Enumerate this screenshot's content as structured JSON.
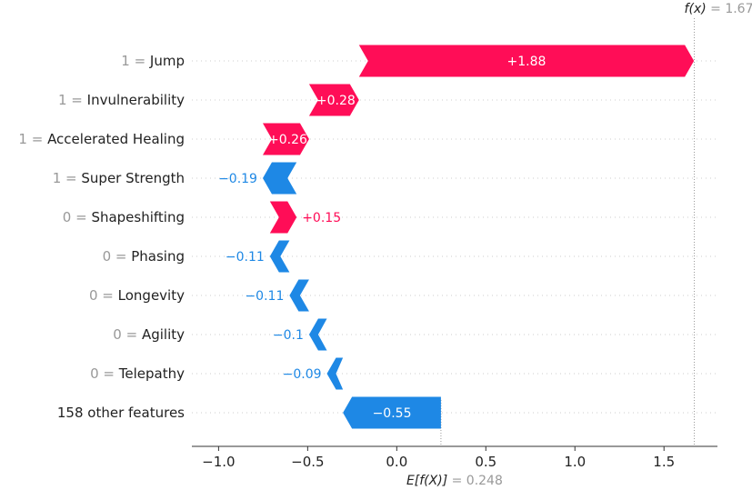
{
  "chart_data": {
    "type": "waterfall",
    "base_value": 0.248,
    "output_value": 1.67,
    "base_label": {
      "text": "E[f(X)]",
      "value_text": "= 0.248"
    },
    "output_label": {
      "text": "f(x)",
      "value_text": "= 1.67"
    },
    "xlim": [
      -1.15,
      1.8
    ],
    "xticks": [
      -1.0,
      -0.5,
      0.0,
      0.5,
      1.0,
      1.5
    ],
    "xtick_labels": [
      "−1.0",
      "−0.5",
      "0.0",
      "0.5",
      "1.0",
      "1.5"
    ],
    "features": [
      {
        "value": "1",
        "name": "Jump",
        "contribution": 1.88,
        "label": "+1.88"
      },
      {
        "value": "1",
        "name": "Invulnerability",
        "contribution": 0.28,
        "label": "+0.28"
      },
      {
        "value": "1",
        "name": "Accelerated Healing",
        "contribution": 0.26,
        "label": "+0.26"
      },
      {
        "value": "1",
        "name": "Super Strength",
        "contribution": -0.19,
        "label": "−0.19"
      },
      {
        "value": "0",
        "name": "Shapeshifting",
        "contribution": 0.15,
        "label": "+0.15"
      },
      {
        "value": "0",
        "name": "Phasing",
        "contribution": -0.11,
        "label": "−0.11"
      },
      {
        "value": "0",
        "name": "Longevity",
        "contribution": -0.11,
        "label": "−0.11"
      },
      {
        "value": "0",
        "name": "Agility",
        "contribution": -0.1,
        "label": "−0.1"
      },
      {
        "value": "0",
        "name": "Telepathy",
        "contribution": -0.09,
        "label": "−0.09"
      },
      {
        "value": "",
        "name": "158 other features",
        "contribution": -0.55,
        "label": "−0.55"
      }
    ],
    "colors": {
      "positive": "#ff0d57",
      "negative": "#1e88e5",
      "axis": "#333333",
      "grid": "#cccccc",
      "muted": "#999999"
    }
  }
}
